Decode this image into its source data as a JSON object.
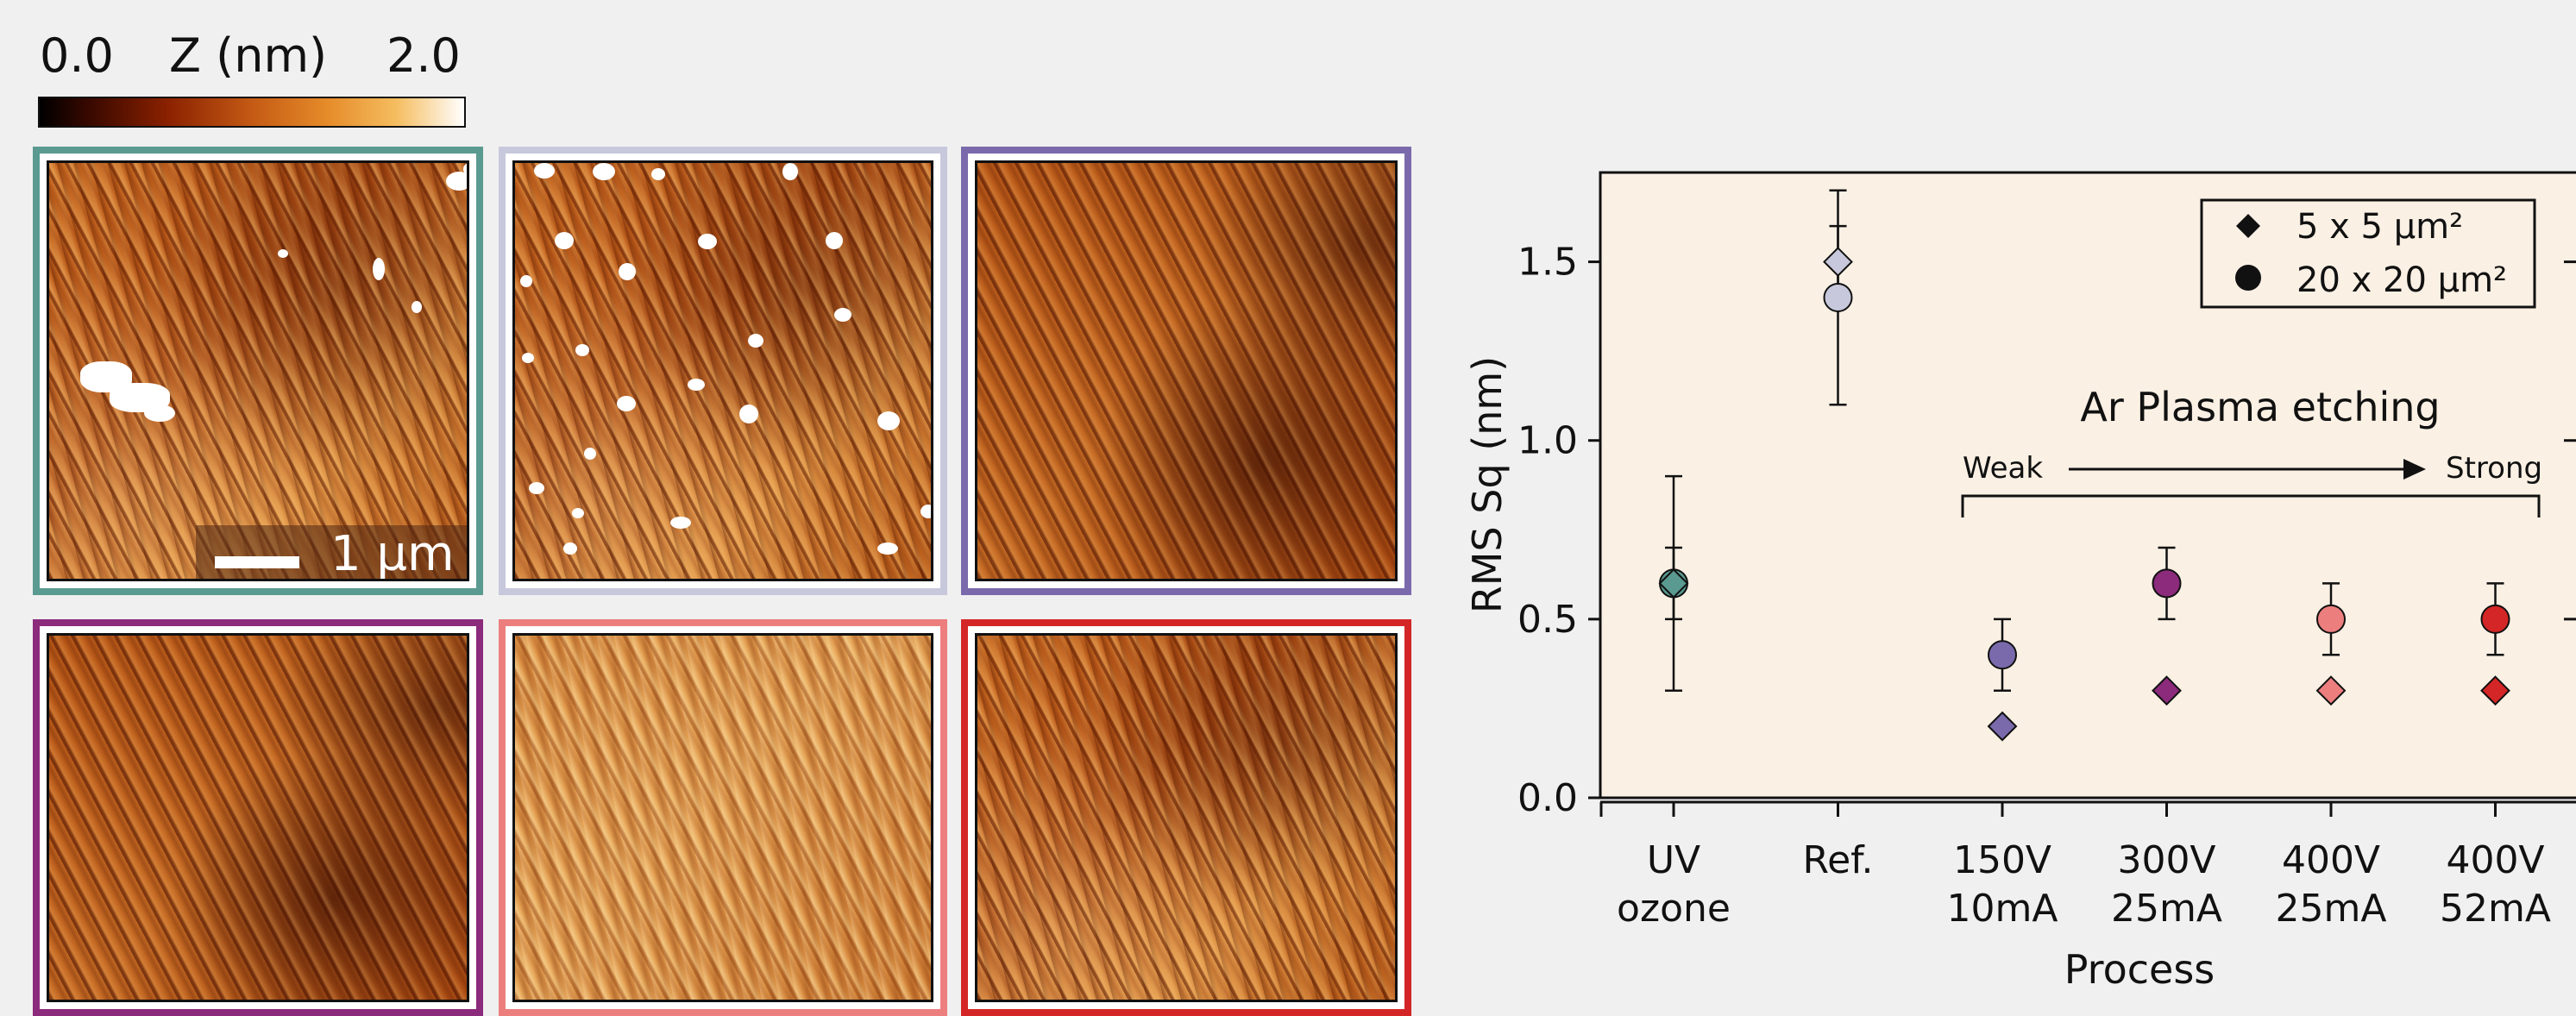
{
  "colorbar": {
    "min_label": "0.0",
    "title": "Z (nm)",
    "max_label": "2.0",
    "colors": [
      "#000000",
      "#8a2100",
      "#c45a14",
      "#f5bd5f",
      "#ffffff"
    ]
  },
  "scale_bar_label": "1 µm",
  "tiles": [
    {
      "border_color": "#5a9a90"
    },
    {
      "border_color": "#c8c8dc"
    },
    {
      "border_color": "#7a6aac"
    },
    {
      "border_color": "#8c2a7c"
    },
    {
      "border_color": "#ec7e7e"
    },
    {
      "border_color": "#d42626"
    }
  ],
  "chart_data": {
    "type": "scatter",
    "xlabel": "Process",
    "ylabel": "RMS Sq (nm)",
    "ylim": [
      0.0,
      1.75
    ],
    "yticks": [
      "0.0",
      "0.5",
      "1.0",
      "1.5"
    ],
    "categories": [
      [
        "UV",
        "ozone"
      ],
      [
        "Ref."
      ],
      [
        "150V",
        "10mA"
      ],
      [
        "300V",
        "25mA"
      ],
      [
        "400V",
        "25mA"
      ],
      [
        "400V",
        "52mA"
      ]
    ],
    "category_colors": [
      "#5a9a90",
      "#c8c8dc",
      "#7a6aac",
      "#8c2a7c",
      "#ec7e7e",
      "#d42626"
    ],
    "series": [
      {
        "name": "5 x 5 µm²",
        "marker": "diamond",
        "values": [
          0.6,
          1.5,
          0.2,
          0.3,
          0.3,
          0.3
        ],
        "err": [
          0.1,
          0.1,
          0.0,
          0.0,
          0.0,
          0.0
        ]
      },
      {
        "name": "20 x 20 µm²",
        "marker": "circle",
        "values": [
          0.6,
          1.4,
          0.4,
          0.6,
          0.5,
          0.5
        ],
        "err": [
          0.3,
          0.3,
          0.1,
          0.1,
          0.1,
          0.1
        ]
      }
    ],
    "annotation": {
      "title": "Ar Plasma etching",
      "left": "Weak",
      "right": "Strong"
    },
    "legend_position": "top-right",
    "background": "#faf0e4"
  }
}
